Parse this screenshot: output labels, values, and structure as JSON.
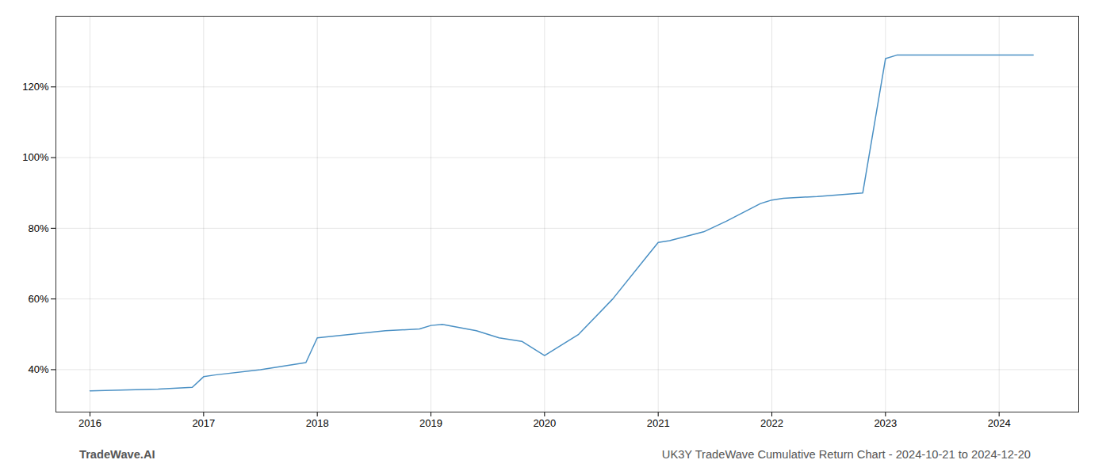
{
  "chart_data": {
    "type": "line",
    "x": [
      2016,
      2016.6,
      2016.9,
      2017,
      2017.1,
      2017.5,
      2017.9,
      2018,
      2018.3,
      2018.6,
      2018.9,
      2019,
      2019.1,
      2019.4,
      2019.6,
      2019.8,
      2020,
      2020.3,
      2020.6,
      2020.9,
      2021,
      2021.1,
      2021.4,
      2021.6,
      2021.9,
      2022,
      2022.1,
      2022.4,
      2022.6,
      2022.8,
      2023,
      2023.1,
      2023.8,
      2024,
      2024.3
    ],
    "values": [
      34,
      34.5,
      35,
      38,
      38.5,
      40,
      42,
      49,
      50,
      51,
      51.5,
      52.5,
      52.8,
      51,
      49,
      48,
      44,
      50,
      60,
      72,
      76,
      76.5,
      79,
      82,
      87,
      88,
      88.5,
      89,
      89.5,
      90,
      128,
      129,
      129,
      129,
      129
    ],
    "color": "#4a90c4",
    "xlim": [
      2015.7,
      2024.7
    ],
    "xticks": [
      2016,
      2017,
      2018,
      2019,
      2020,
      2021,
      2022,
      2023,
      2024
    ],
    "ylim": [
      28,
      140
    ],
    "yticks": [
      {
        "value": 40,
        "label": "40%"
      },
      {
        "value": 60,
        "label": "60%"
      },
      {
        "value": 80,
        "label": "80%"
      },
      {
        "value": 100,
        "label": "100%"
      },
      {
        "value": 120,
        "label": "120%"
      }
    ],
    "grid": true,
    "annotations": [
      "TradeWave.AI",
      "UK3Y TradeWave Cumulative Return Chart - 2024-10-21 to 2024-12-20"
    ]
  }
}
